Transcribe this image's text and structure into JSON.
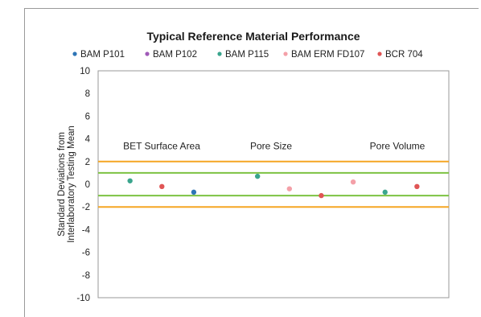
{
  "chart_data": {
    "type": "scatter",
    "title": "Typical Reference Material Performance",
    "ylabel": [
      "Standard Deviations from",
      "Interlaboratory Testing Mean"
    ],
    "ylim": [
      -10,
      10
    ],
    "yticks": [
      10,
      8,
      6,
      4,
      2,
      0,
      -2,
      -4,
      -6,
      -8,
      -10
    ],
    "grid": false,
    "legend_position": "top",
    "groups": [
      "BET Surface Area",
      "Pore Size",
      "Pore Volume"
    ],
    "series": [
      {
        "name": "BAM P101",
        "color": "#2e75b6",
        "points": [
          {
            "x": 3,
            "y": -0.7
          }
        ]
      },
      {
        "name": "BAM P102",
        "color": "#a05ab8",
        "points": []
      },
      {
        "name": "BAM P115",
        "color": "#3aa58d",
        "points": [
          {
            "x": 1,
            "y": 0.3
          },
          {
            "x": 5,
            "y": 0.7
          },
          {
            "x": 9,
            "y": -0.7
          }
        ]
      },
      {
        "name": "BAM ERM FD107",
        "color": "#f4a0a8",
        "points": [
          {
            "x": 6,
            "y": -0.4
          },
          {
            "x": 8,
            "y": 0.2
          }
        ]
      },
      {
        "name": "BCR 704",
        "color": "#e05555",
        "points": [
          {
            "x": 2,
            "y": -0.2
          },
          {
            "x": 7,
            "y": -1.0
          },
          {
            "x": 10,
            "y": -0.2
          }
        ]
      }
    ],
    "reference_lines": [
      {
        "y": 2,
        "color": "#f5a623"
      },
      {
        "y": 1,
        "color": "#7dc242"
      },
      {
        "y": -1,
        "color": "#7dc242"
      },
      {
        "y": -2,
        "color": "#f5a623"
      }
    ],
    "xlim": [
      0,
      11
    ]
  }
}
